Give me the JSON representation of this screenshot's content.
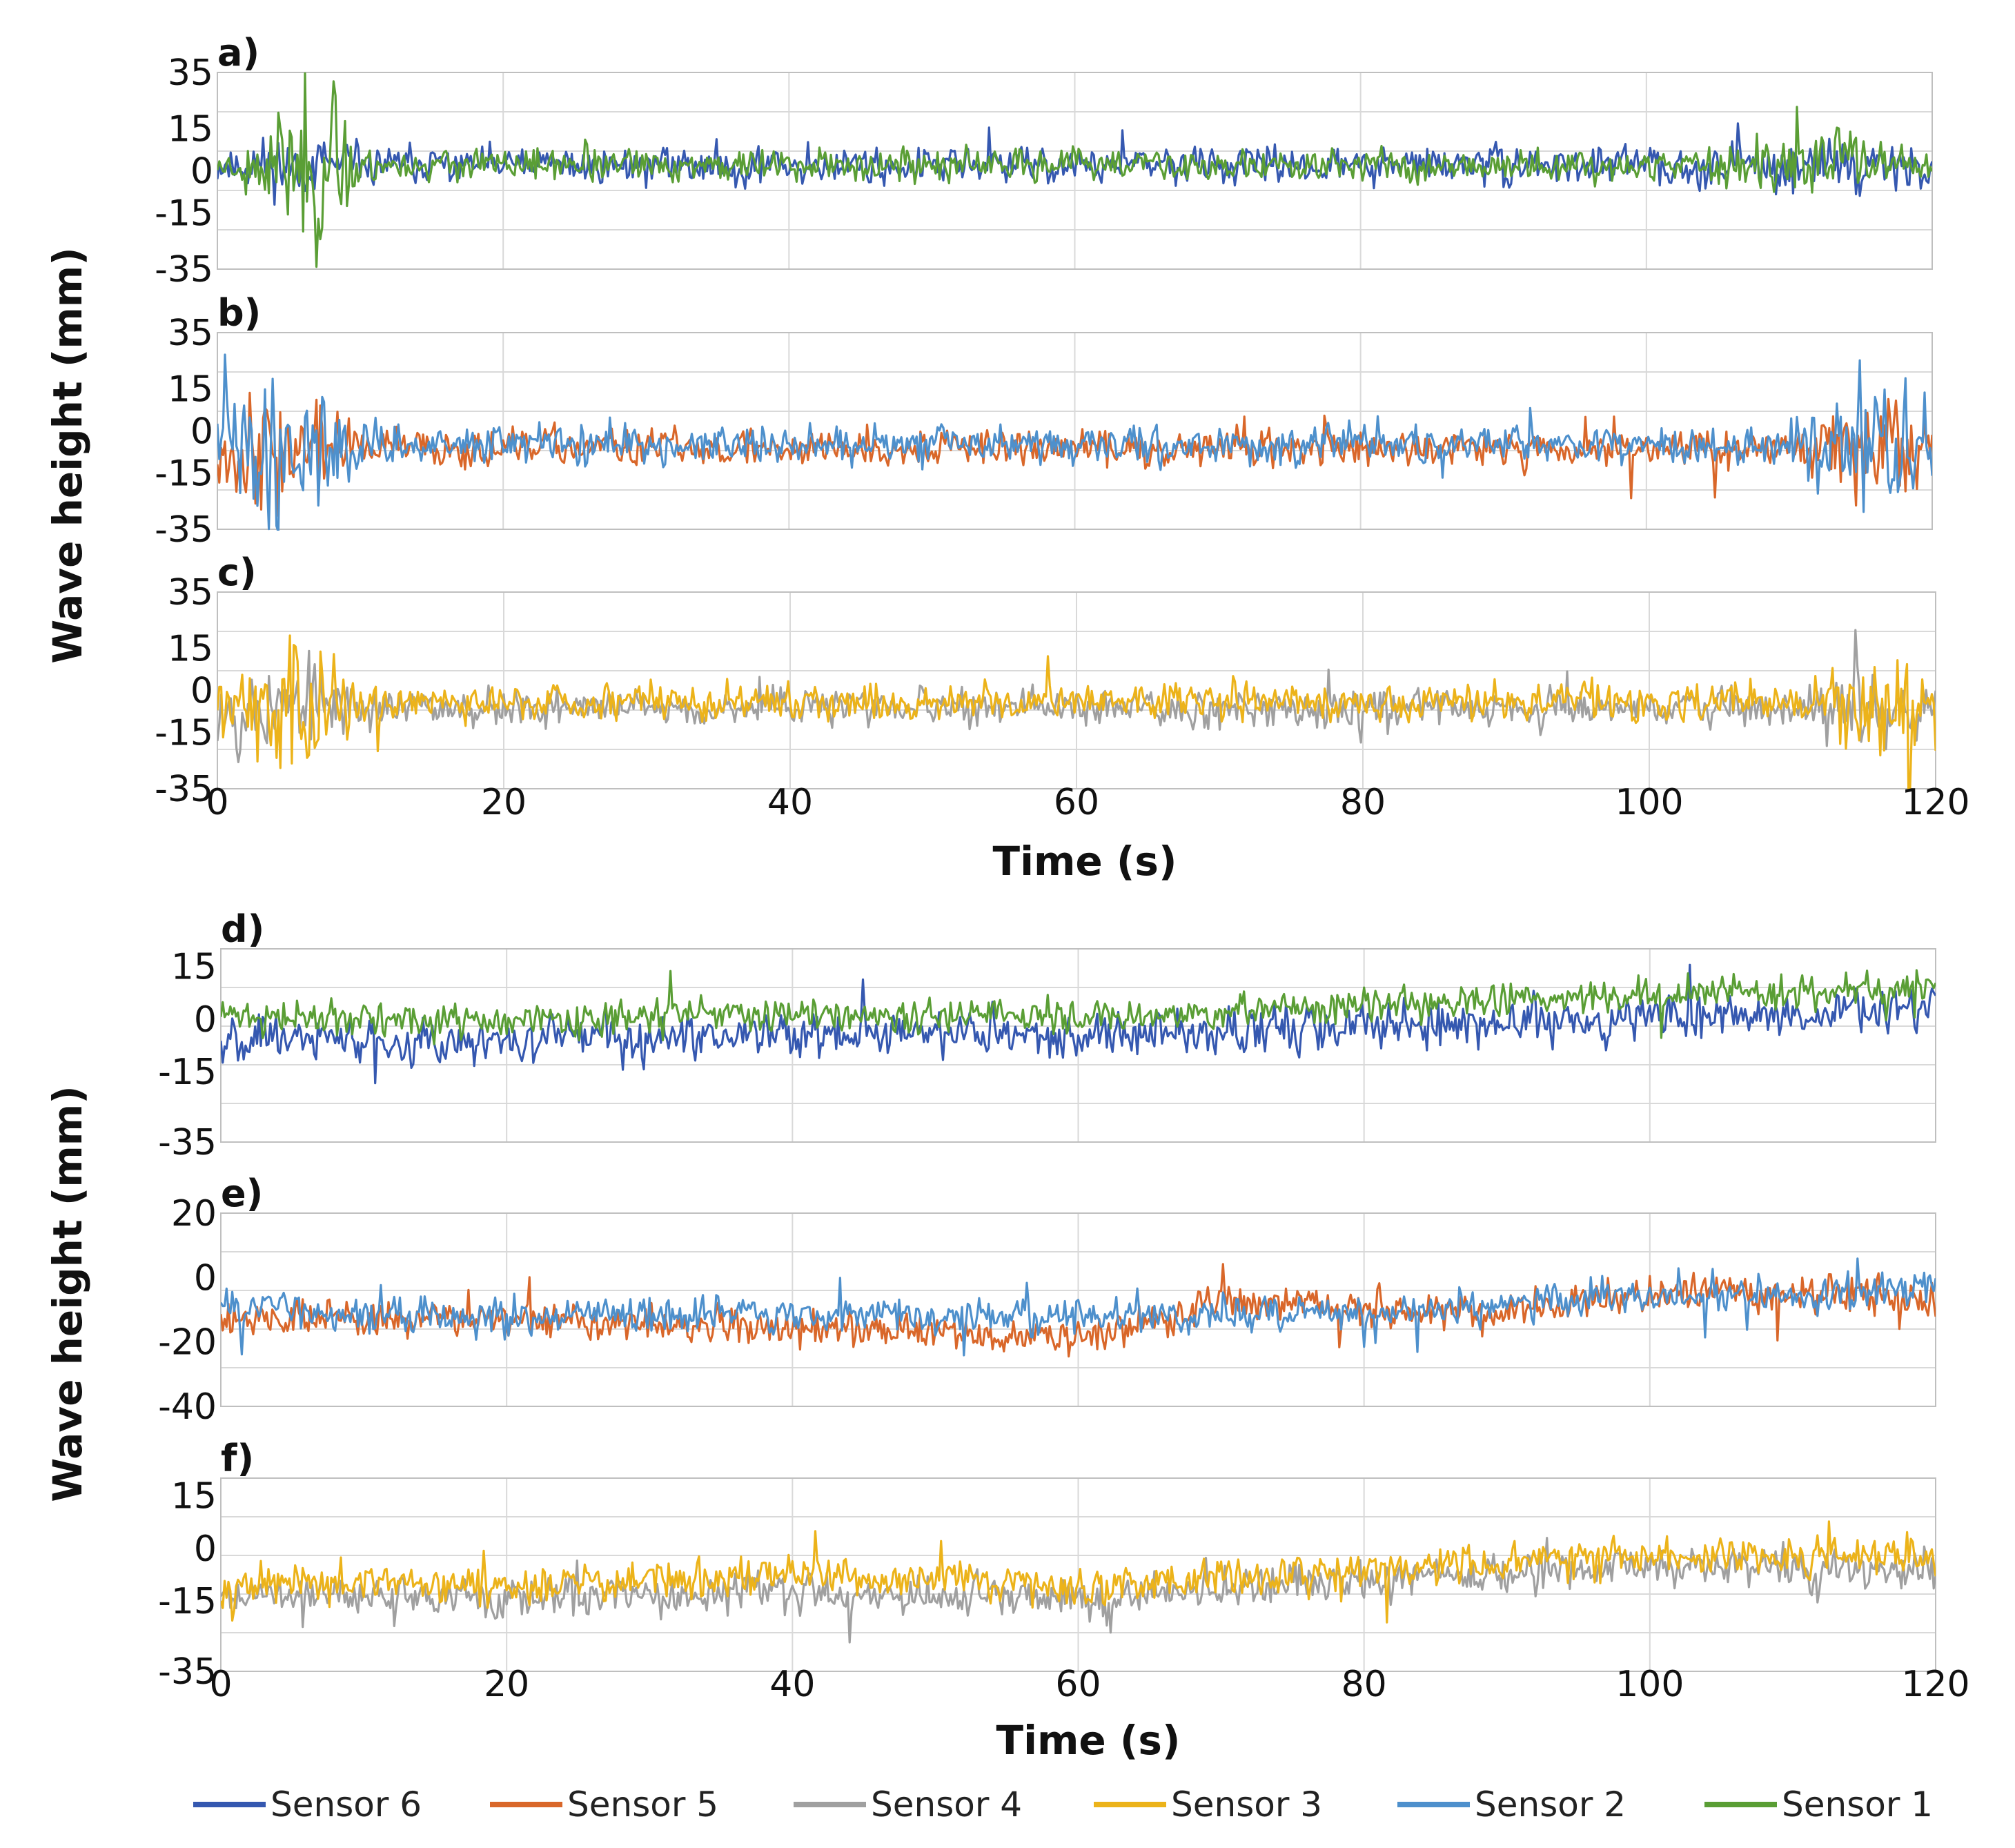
{
  "chart_data": {
    "type": "line",
    "x_title": "Time (s)",
    "y_title": "Wave height (mm)",
    "x_ticks": [
      "0",
      "20",
      "40",
      "60",
      "80",
      "100",
      "120"
    ],
    "xlim": [
      0,
      120
    ],
    "colors": {
      "Sensor 1": "#5a9e35",
      "Sensor 2": "#4e90cc",
      "Sensor 3": "#ecb31a",
      "Sensor 4": "#a0a0a0",
      "Sensor 5": "#d9672a",
      "Sensor 6": "#3558b0"
    },
    "legend": [
      "Sensor 6",
      "Sensor 5",
      "Sensor 4",
      "Sensor 3",
      "Sensor 2",
      "Sensor 1"
    ],
    "panels": [
      {
        "label": "a)",
        "ylim": [
          -35,
          35
        ],
        "y_ticks": [
          "35",
          "15",
          "0",
          "-15",
          "-35"
        ],
        "y_tick_values": [
          35,
          15,
          0,
          -15,
          -35
        ],
        "series": [
          {
            "name": "Sensor 6",
            "baseline": 2,
            "amp": 7,
            "seed": 11,
            "events": [
              {
                "t": 4,
                "w": 6,
                "k": 1.6
              },
              {
                "t": 113,
                "w": 7,
                "k": 1.5
              }
            ]
          },
          {
            "name": "Sensor 1",
            "baseline": 2,
            "amp": 6,
            "seed": 23,
            "events": [
              {
                "t": 6.5,
                "w": 4,
                "k": 5.5
              },
              {
                "t": 112,
                "w": 6,
                "k": 2.8
              }
            ]
          }
        ]
      },
      {
        "label": "b)",
        "ylim": [
          -35,
          35
        ],
        "y_ticks": [
          "35",
          "15",
          "0",
          "-15",
          "-35"
        ],
        "y_tick_values": [
          35,
          15,
          0,
          -15,
          -35
        ],
        "series": [
          {
            "name": "Sensor 5",
            "baseline": -6,
            "amp": 7,
            "seed": 37,
            "events": [
              {
                "t": 4,
                "w": 6,
                "k": 3.5
              },
              {
                "t": 116,
                "w": 6,
                "k": 3.0
              }
            ]
          },
          {
            "name": "Sensor 2",
            "baseline": -5,
            "amp": 7,
            "seed": 41,
            "events": [
              {
                "t": 5,
                "w": 6,
                "k": 4.5
              },
              {
                "t": 116,
                "w": 7,
                "k": 3.5
              }
            ]
          }
        ]
      },
      {
        "label": "c)",
        "ylim": [
          -35,
          35
        ],
        "y_ticks": [
          "35",
          "15",
          "0",
          "-15",
          "-35"
        ],
        "y_tick_values": [
          35,
          15,
          0,
          -15,
          -35
        ],
        "series": [
          {
            "name": "Sensor 4",
            "baseline": -6,
            "amp": 7,
            "seed": 53,
            "events": [
              {
                "t": 4,
                "w": 6,
                "k": 3.0
              },
              {
                "t": 115,
                "w": 7,
                "k": 2.2
              }
            ]
          },
          {
            "name": "Sensor 3",
            "baseline": -4,
            "amp": 7,
            "seed": 59,
            "events": [
              {
                "t": 6,
                "w": 5,
                "k": 5.0
              },
              {
                "t": 117,
                "w": 5,
                "k": 4.0
              }
            ]
          }
        ]
      },
      {
        "label": "d)",
        "ylim": [
          -35,
          20
        ],
        "y_ticks": [
          "15",
          "0",
          "-15",
          "-35"
        ],
        "y_tick_values": [
          15,
          0,
          -15,
          -35
        ],
        "series": [
          {
            "name": "Sensor 6",
            "baseline_points": [
              [
                0,
                -5
              ],
              [
                20,
                -6
              ],
              [
                40,
                -3
              ],
              [
                60,
                -5
              ],
              [
                80,
                -2
              ],
              [
                100,
                0
              ],
              [
                120,
                3
              ]
            ],
            "amp": 7,
            "seed": 67,
            "events": []
          },
          {
            "name": "Sensor 1",
            "baseline_points": [
              [
                0,
                1
              ],
              [
                20,
                -1
              ],
              [
                40,
                2
              ],
              [
                60,
                0
              ],
              [
                80,
                4
              ],
              [
                100,
                7
              ],
              [
                120,
                9
              ]
            ],
            "amp": 5,
            "seed": 71,
            "events": []
          }
        ]
      },
      {
        "label": "e)",
        "ylim": [
          -40,
          20
        ],
        "y_ticks": [
          "20",
          "0",
          "-20",
          "-40"
        ],
        "y_tick_values": [
          20,
          0,
          -20,
          -40
        ],
        "series": [
          {
            "name": "Sensor 5",
            "baseline_points": [
              [
                0,
                -12
              ],
              [
                20,
                -13
              ],
              [
                40,
                -16
              ],
              [
                60,
                -19
              ],
              [
                70,
                -7
              ],
              [
                90,
                -11
              ],
              [
                100,
                -4
              ],
              [
                120,
                -6
              ]
            ],
            "amp": 6,
            "seed": 79,
            "events": []
          },
          {
            "name": "Sensor 2",
            "baseline_points": [
              [
                0,
                -9
              ],
              [
                20,
                -13
              ],
              [
                40,
                -11
              ],
              [
                60,
                -12
              ],
              [
                80,
                -11
              ],
              [
                100,
                -6
              ],
              [
                120,
                -4
              ]
            ],
            "amp": 6,
            "seed": 83,
            "events": []
          }
        ]
      },
      {
        "label": "f)",
        "ylim": [
          -35,
          20
        ],
        "y_ticks": [
          "15",
          "0",
          "-15",
          "-35"
        ],
        "y_tick_values": [
          15,
          0,
          -15,
          -35
        ],
        "series": [
          {
            "name": "Sensor 4",
            "baseline_points": [
              [
                0,
                -13
              ],
              [
                20,
                -14
              ],
              [
                40,
                -12
              ],
              [
                60,
                -15
              ],
              [
                80,
                -9
              ],
              [
                100,
                -5
              ],
              [
                120,
                -6
              ]
            ],
            "amp": 6,
            "seed": 89,
            "events": []
          },
          {
            "name": "Sensor 3",
            "baseline_points": [
              [
                0,
                -10
              ],
              [
                20,
                -11
              ],
              [
                40,
                -8
              ],
              [
                60,
                -11
              ],
              [
                80,
                -6
              ],
              [
                100,
                -2
              ],
              [
                120,
                -2
              ]
            ],
            "amp": 6,
            "seed": 97,
            "events": []
          }
        ]
      }
    ]
  }
}
